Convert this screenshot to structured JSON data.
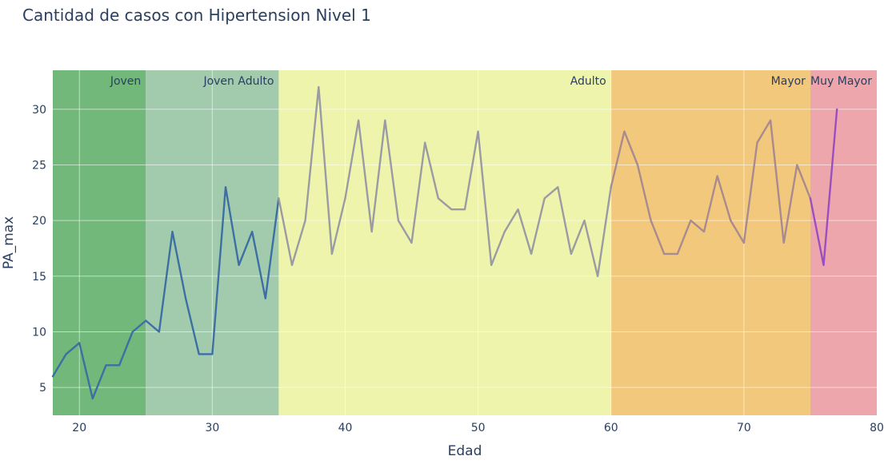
{
  "chart_data": {
    "type": "line",
    "title": "Cantidad de casos con Hipertension Nivel 1",
    "xlabel": "Edad",
    "ylabel": "PA_max",
    "xlim": [
      18,
      80
    ],
    "ylim": [
      2.5,
      33.5
    ],
    "xticks": [
      20,
      30,
      40,
      50,
      60,
      70,
      80
    ],
    "yticks": [
      5,
      10,
      15,
      20,
      25,
      30
    ],
    "grid": true,
    "bands": [
      {
        "name": "Joven",
        "x0": 18,
        "x1": 25,
        "color": "#72b87a"
      },
      {
        "name": "Joven Adulto",
        "x0": 25,
        "x1": 35,
        "color": "#a2cbae"
      },
      {
        "name": "Adulto",
        "x0": 35,
        "x1": 60,
        "color": "#eef4ab"
      },
      {
        "name": "Mayor",
        "x0": 60,
        "x1": 75,
        "color": "#f1c87c"
      },
      {
        "name": "Muy Mayor",
        "x0": 75,
        "x1": 80,
        "color": "#eda6ac"
      }
    ],
    "series": [
      {
        "name": "PA_max",
        "x": [
          18,
          19,
          20,
          21,
          22,
          23,
          24,
          25,
          26,
          27,
          28,
          29,
          30,
          31,
          32,
          33,
          34,
          35,
          36,
          37,
          38,
          39,
          40,
          41,
          42,
          43,
          44,
          45,
          46,
          47,
          48,
          49,
          50,
          51,
          52,
          53,
          54,
          55,
          56,
          57,
          58,
          59,
          60,
          61,
          62,
          63,
          64,
          65,
          66,
          67,
          68,
          69,
          70,
          71,
          72,
          73,
          74,
          75,
          76,
          77
        ],
        "values": [
          6,
          8,
          9,
          4,
          7,
          7,
          10,
          11,
          10,
          19,
          13,
          8,
          8,
          23,
          16,
          19,
          13,
          22,
          16,
          20,
          32,
          17,
          22,
          29,
          19,
          29,
          20,
          18,
          27,
          22,
          21,
          21,
          28,
          16,
          19,
          21,
          17,
          22,
          23,
          17,
          20,
          15,
          23,
          28,
          25,
          20,
          17,
          17,
          20,
          19,
          24,
          20,
          18,
          27,
          29,
          18,
          25,
          22,
          16,
          30
        ],
        "segment_colors": [
          {
            "from": 18,
            "to": 35,
            "color": "#3d6fa3"
          },
          {
            "from": 35,
            "to": 60,
            "color": "#9a9ba3"
          },
          {
            "from": 60,
            "to": 75,
            "color": "#a98a8e"
          },
          {
            "from": 75,
            "to": 77,
            "color": "#9b4fbf"
          }
        ]
      }
    ]
  }
}
